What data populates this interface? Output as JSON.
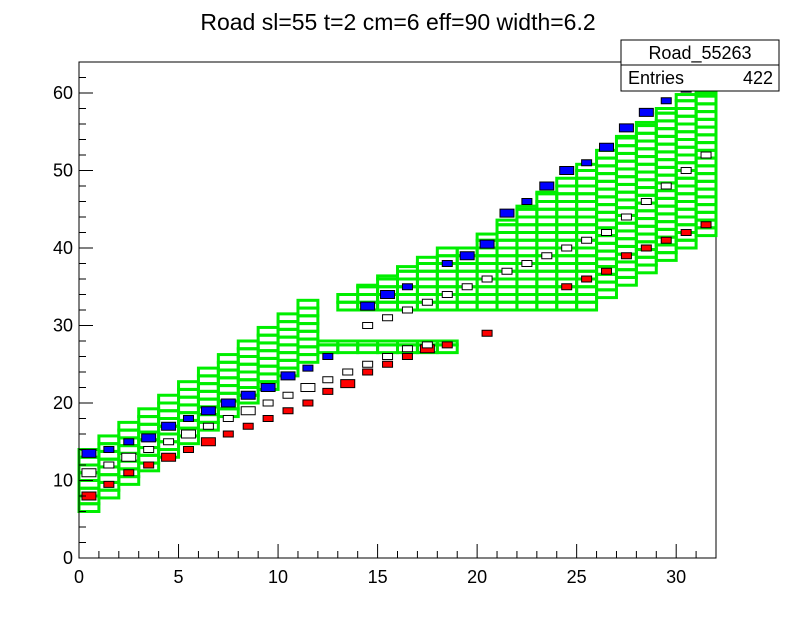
{
  "chart_data": {
    "type": "heatmap",
    "title": "Road sl=55 t=2 cm=6 eff=90 width=6.2",
    "xlabel": "",
    "ylabel": "",
    "xlim": [
      0,
      32
    ],
    "ylim": [
      0,
      64
    ],
    "x_ticks": [
      "0",
      "5",
      "10",
      "15",
      "20",
      "25",
      "30"
    ],
    "y_ticks": [
      "0",
      "10",
      "20",
      "30",
      "40",
      "50",
      "60"
    ],
    "grid": false,
    "stats_box": {
      "name": "Road_55263",
      "entries_label": "Entries",
      "entries_value": "422"
    },
    "road_color": "#00ee00",
    "road_segments": [
      {
        "x_start": 0,
        "x_end": 12,
        "y_low_start": 6,
        "y_high_start": 14,
        "slope": 1.167
      },
      {
        "x_start": 12,
        "x_end": 19,
        "y_low": 27,
        "y_high": 28
      },
      {
        "x_start": 13,
        "x_end": 25,
        "y_low": 32,
        "y_high": 34,
        "slope_top": 1.67
      },
      {
        "x_start": 25,
        "x_end": 32,
        "y_low_start": 32,
        "y_high_start": 56,
        "slope": 1.67
      }
    ],
    "series": [
      {
        "color": "#0000ff",
        "cells": [
          [
            0,
            13.5,
            2
          ],
          [
            1,
            14,
            1
          ],
          [
            2,
            15,
            1
          ],
          [
            3,
            15.5,
            2
          ],
          [
            4,
            17,
            2
          ],
          [
            5,
            18,
            1
          ],
          [
            6,
            19,
            2
          ],
          [
            7,
            20,
            2
          ],
          [
            8,
            21,
            2
          ],
          [
            9,
            22,
            2
          ],
          [
            10,
            23.5,
            2
          ],
          [
            11,
            24.5,
            1
          ],
          [
            12,
            26,
            1
          ],
          [
            14,
            32.5,
            2
          ],
          [
            15,
            34,
            2
          ],
          [
            16,
            35,
            1
          ],
          [
            18,
            38,
            1
          ],
          [
            19,
            39,
            2
          ],
          [
            20,
            40.5,
            2
          ],
          [
            21,
            44.5,
            2
          ],
          [
            22,
            46,
            1
          ],
          [
            23,
            48,
            2
          ],
          [
            24,
            50,
            2
          ],
          [
            25,
            51,
            1
          ],
          [
            26,
            53,
            2
          ],
          [
            27,
            55.5,
            2
          ],
          [
            28,
            57.5,
            2
          ],
          [
            29,
            59,
            1
          ],
          [
            30,
            60.5,
            1
          ],
          [
            31,
            63,
            1
          ]
        ]
      },
      {
        "color": "#ff0000",
        "cells": [
          [
            0,
            8,
            2
          ],
          [
            1,
            9.5,
            1
          ],
          [
            2,
            11,
            1
          ],
          [
            3,
            12,
            1
          ],
          [
            4,
            13,
            2
          ],
          [
            5,
            14,
            1
          ],
          [
            6,
            15,
            2
          ],
          [
            7,
            16,
            1
          ],
          [
            8,
            17,
            1
          ],
          [
            9,
            18,
            1
          ],
          [
            10,
            19,
            1
          ],
          [
            11,
            20,
            1
          ],
          [
            12,
            21.5,
            1
          ],
          [
            13,
            22.5,
            2
          ],
          [
            14,
            24,
            1
          ],
          [
            15,
            25,
            1
          ],
          [
            16,
            26,
            1
          ],
          [
            17,
            27,
            2
          ],
          [
            18,
            27.5,
            1
          ],
          [
            20,
            29,
            1
          ],
          [
            24,
            35,
            1
          ],
          [
            25,
            36,
            1
          ],
          [
            26,
            37,
            1
          ],
          [
            27,
            39,
            1
          ],
          [
            28,
            40,
            1
          ],
          [
            29,
            41,
            1
          ],
          [
            30,
            42,
            1
          ],
          [
            31,
            43,
            1
          ]
        ]
      },
      {
        "color": "#ffffff",
        "cells": [
          [
            0,
            11,
            2
          ],
          [
            1,
            12,
            1
          ],
          [
            2,
            13,
            2
          ],
          [
            3,
            14,
            1
          ],
          [
            4,
            15,
            1
          ],
          [
            5,
            16,
            2
          ],
          [
            6,
            17,
            1
          ],
          [
            7,
            18,
            1
          ],
          [
            8,
            19,
            2
          ],
          [
            9,
            20,
            1
          ],
          [
            10,
            21,
            1
          ],
          [
            11,
            22,
            2
          ],
          [
            12,
            23,
            1
          ],
          [
            13,
            24,
            1
          ],
          [
            14,
            25,
            1
          ],
          [
            15,
            26,
            1
          ],
          [
            16,
            27,
            1
          ],
          [
            17,
            27.5,
            1
          ],
          [
            14,
            30,
            1
          ],
          [
            15,
            31,
            1
          ],
          [
            16,
            32,
            1
          ],
          [
            17,
            33,
            1
          ],
          [
            18,
            34,
            1
          ],
          [
            19,
            35,
            1
          ],
          [
            20,
            36,
            1
          ],
          [
            21,
            37,
            1
          ],
          [
            22,
            38,
            1
          ],
          [
            23,
            39,
            1
          ],
          [
            24,
            40,
            1
          ],
          [
            25,
            41,
            1
          ],
          [
            26,
            42,
            1
          ],
          [
            27,
            44,
            1
          ],
          [
            28,
            46,
            1
          ],
          [
            29,
            48,
            1
          ],
          [
            30,
            50,
            1
          ],
          [
            31,
            52,
            1
          ]
        ]
      }
    ]
  }
}
